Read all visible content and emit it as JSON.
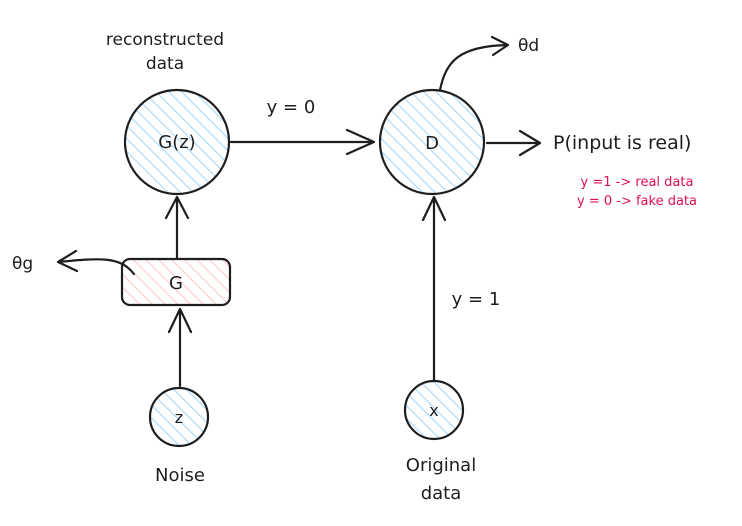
{
  "diagram": {
    "labels": {
      "reconstructed_line1": "reconstructed",
      "reconstructed_line2": "data",
      "gz": "G(z)",
      "d": "D",
      "g": "G",
      "z": "z",
      "x": "x",
      "noise": "Noise",
      "original_line1": "Original",
      "original_line2": "data",
      "y0": "y = 0",
      "y1": "y = 1",
      "theta_d": "θd",
      "theta_g": "θg",
      "output": "P(input is real)",
      "note_real": "y =1 -> real data",
      "note_fake": "y = 0 -> fake data"
    },
    "colors": {
      "node_fill_blue": "#a5d8ff",
      "node_fill_red": "#ffc9c9",
      "stroke": "#1e1e1e",
      "note_text": "#e0104f"
    }
  }
}
